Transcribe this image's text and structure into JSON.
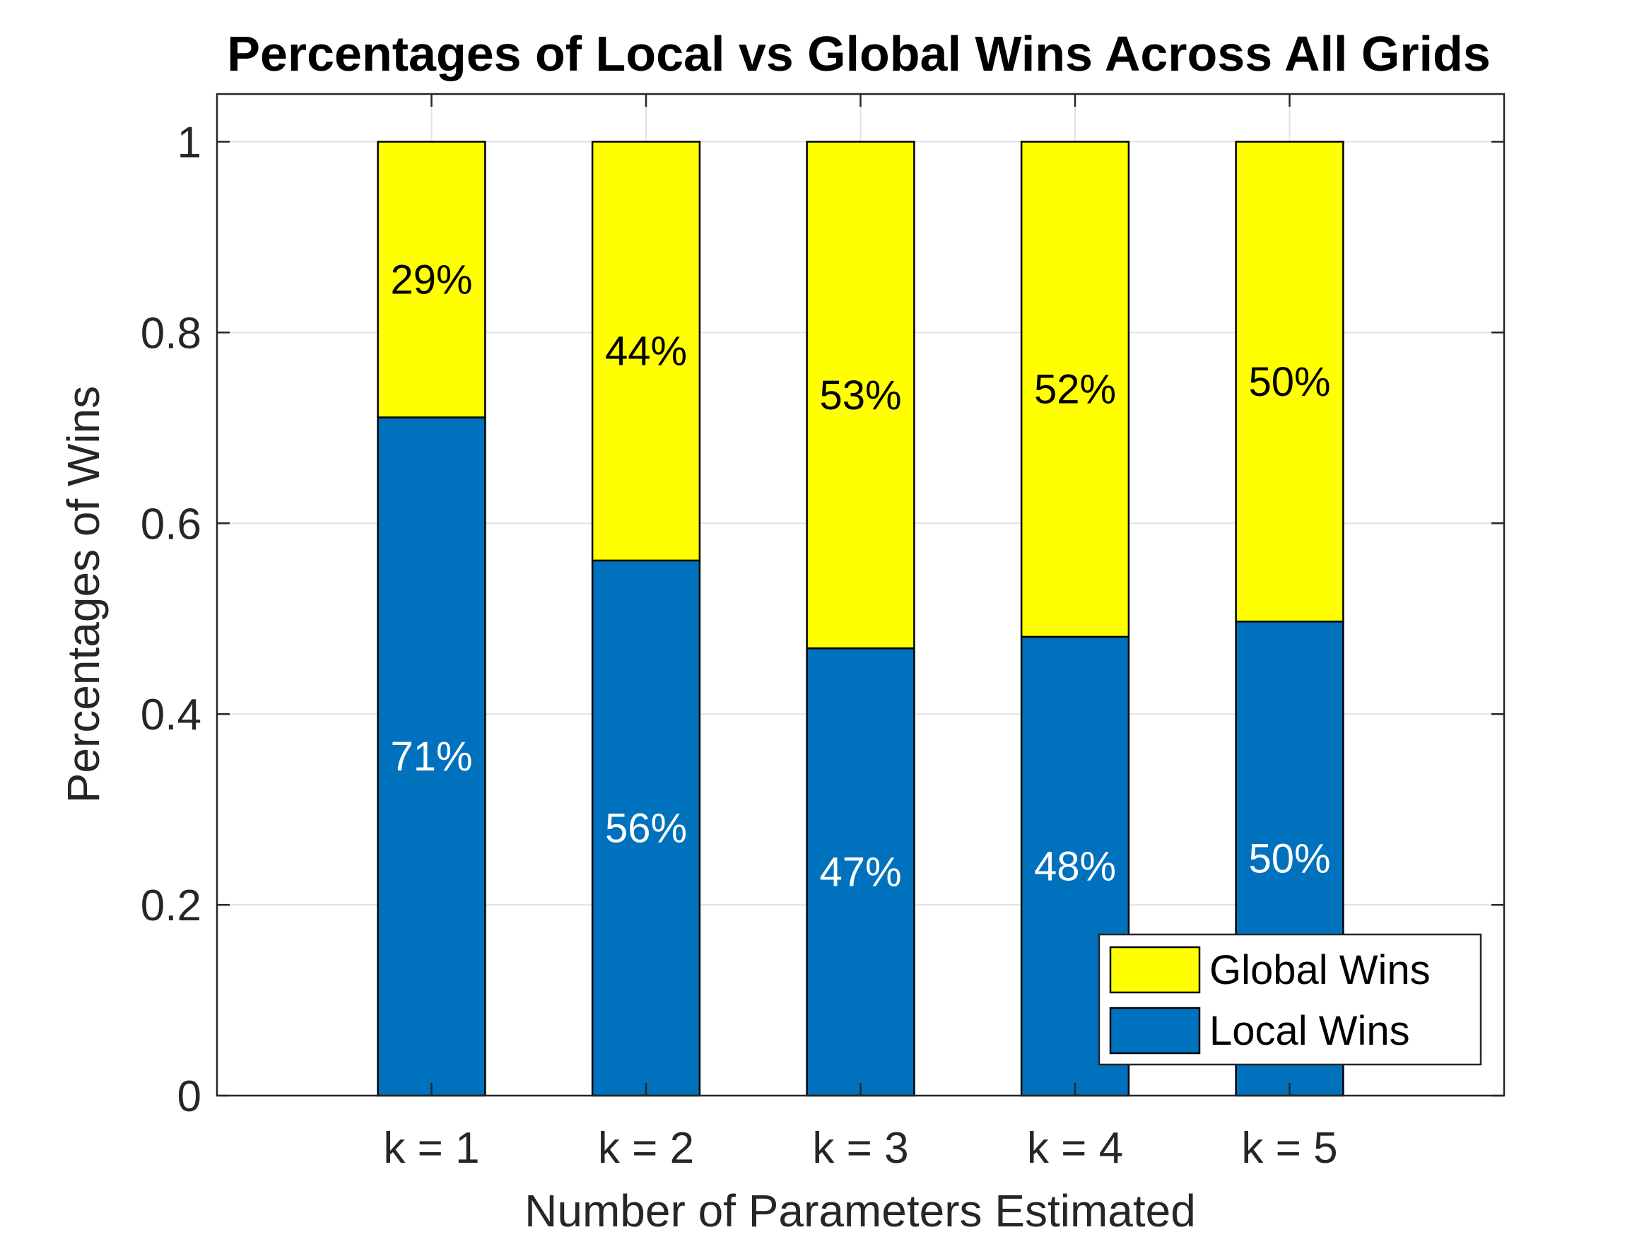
{
  "chart_data": {
    "type": "bar",
    "stacked": true,
    "title": "Percentages of Local vs Global Wins Across All Grids",
    "xlabel": "Number of Parameters Estimated",
    "ylabel": "Percentages of Wins",
    "categories": [
      "k = 1",
      "k = 2",
      "k = 3",
      "k = 4",
      "k = 5"
    ],
    "xlim": [
      0,
      6
    ],
    "ylim": [
      0,
      1.05
    ],
    "yticks": [
      0,
      0.2,
      0.4,
      0.6,
      0.8,
      1
    ],
    "ytick_labels": [
      "0",
      "0.2",
      "0.4",
      "0.6",
      "0.8",
      "1"
    ],
    "grid": true,
    "legend_position": "bottom-right",
    "series": [
      {
        "name": "Local Wins",
        "color": "#0072BD",
        "label_color": "#ffffff",
        "values": [
          0.711,
          0.561,
          0.469,
          0.481,
          0.497
        ],
        "labels": [
          "71%",
          "56%",
          "47%",
          "48%",
          "50%"
        ]
      },
      {
        "name": "Global Wins",
        "color": "#FFFF00",
        "label_color": "#000000",
        "values": [
          0.289,
          0.439,
          0.531,
          0.519,
          0.503
        ],
        "labels": [
          "29%",
          "44%",
          "53%",
          "52%",
          "50%"
        ]
      }
    ],
    "legend_order": [
      "Global Wins",
      "Local Wins"
    ]
  }
}
